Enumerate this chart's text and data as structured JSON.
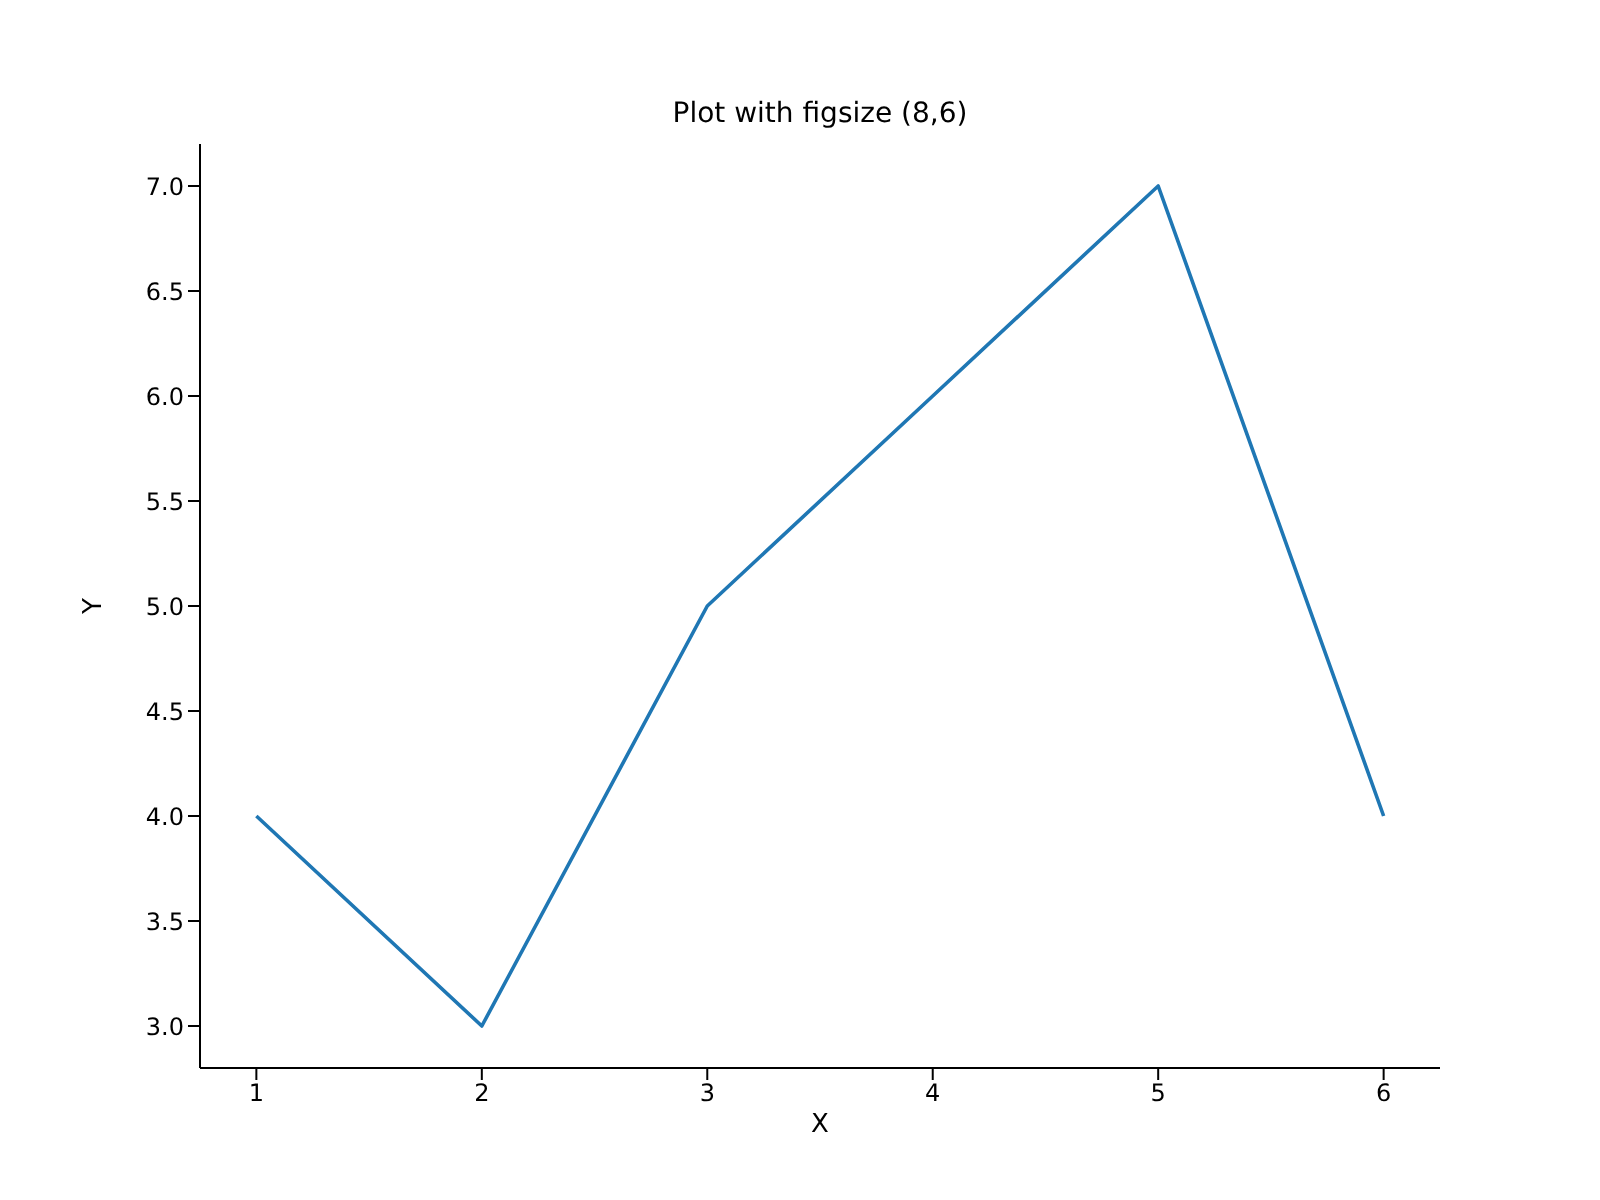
{
  "chart_data": {
    "type": "line",
    "title": "Plot with figsize (8,6)",
    "xlabel": "X",
    "ylabel": "Y",
    "x": [
      1,
      2,
      3,
      4,
      5,
      6
    ],
    "series": [
      {
        "color": "#1f77b4",
        "values": [
          4,
          3,
          5,
          6,
          7,
          4
        ]
      }
    ],
    "xlim": [
      0.75,
      6.25
    ],
    "xticks": [
      1,
      2,
      3,
      4,
      5,
      6
    ],
    "ylim": [
      2.8,
      7.2
    ],
    "yticks": [
      {
        "value": 3,
        "label": "3.0"
      },
      {
        "value": 3.5,
        "label": "3.5"
      },
      {
        "value": 4,
        "label": "4.0"
      },
      {
        "value": 4.5,
        "label": "4.5"
      },
      {
        "value": 5,
        "label": "5.0"
      },
      {
        "value": 5.5,
        "label": "5.5"
      },
      {
        "value": 6,
        "label": "6.0"
      },
      {
        "value": 6.5,
        "label": "6.5"
      },
      {
        "value": 7,
        "label": "7.0"
      }
    ]
  }
}
